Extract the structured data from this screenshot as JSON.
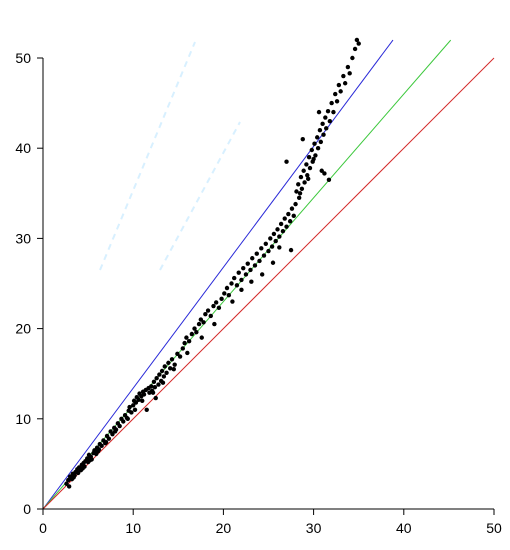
{
  "chart_data": {
    "type": "scatter",
    "title": "",
    "xlabel": "",
    "ylabel": "",
    "xlim": [
      0,
      50
    ],
    "ylim": [
      0,
      50
    ],
    "x_ticks": [
      "0",
      "10",
      "20",
      "30",
      "40",
      "50"
    ],
    "y_ticks": [
      "0",
      "10",
      "20",
      "30",
      "40",
      "50"
    ],
    "grid": false,
    "legend": "none",
    "reference_lines": [
      {
        "color": "#2a2ad8",
        "slope": 1.34,
        "x_range": [
          0,
          38.8
        ]
      },
      {
        "color": "#3cc83c",
        "slope": 1.15,
        "x_range": [
          0,
          45.2
        ]
      },
      {
        "color": "#d42a2a",
        "slope": 1.0,
        "x_range": [
          0,
          50
        ]
      }
    ],
    "points": [
      [
        2.6,
        2.8
      ],
      [
        2.8,
        3.2
      ],
      [
        3.0,
        3.6
      ],
      [
        3.2,
        3.3
      ],
      [
        3.3,
        3.9
      ],
      [
        3.5,
        3.7
      ],
      [
        3.6,
        4.1
      ],
      [
        3.8,
        4.4
      ],
      [
        3.9,
        4.0
      ],
      [
        4.0,
        4.6
      ],
      [
        4.2,
        4.3
      ],
      [
        4.3,
        4.9
      ],
      [
        4.5,
        5.1
      ],
      [
        4.6,
        4.7
      ],
      [
        4.7,
        5.3
      ],
      [
        4.9,
        5.6
      ],
      [
        5.0,
        5.2
      ],
      [
        5.1,
        6.0
      ],
      [
        5.3,
        5.8
      ],
      [
        5.4,
        5.5
      ],
      [
        5.6,
        6.2
      ],
      [
        5.7,
        6.5
      ],
      [
        5.9,
        6.1
      ],
      [
        6.0,
        6.8
      ],
      [
        6.2,
        6.6
      ],
      [
        6.3,
        7.2
      ],
      [
        6.5,
        7.0
      ],
      [
        6.7,
        7.6
      ],
      [
        6.9,
        7.3
      ],
      [
        7.1,
        8.1
      ],
      [
        7.3,
        7.8
      ],
      [
        7.5,
        8.6
      ],
      [
        7.7,
        8.3
      ],
      [
        7.9,
        9.0
      ],
      [
        8.1,
        8.8
      ],
      [
        8.3,
        9.5
      ],
      [
        8.5,
        9.2
      ],
      [
        8.7,
        10.0
      ],
      [
        8.9,
        9.7
      ],
      [
        9.1,
        10.4
      ],
      [
        9.3,
        10.1
      ],
      [
        9.5,
        10.9
      ],
      [
        9.6,
        11.3
      ],
      [
        9.8,
        10.7
      ],
      [
        10.0,
        11.5
      ],
      [
        10.1,
        12.0
      ],
      [
        10.3,
        11.8
      ],
      [
        10.4,
        12.4
      ],
      [
        10.6,
        12.1
      ],
      [
        10.7,
        12.8
      ],
      [
        10.9,
        12.5
      ],
      [
        11.1,
        13.0
      ],
      [
        11.2,
        12.7
      ],
      [
        11.4,
        13.2
      ],
      [
        11.5,
        11.0
      ],
      [
        11.7,
        13.4
      ],
      [
        11.8,
        12.9
      ],
      [
        12.0,
        13.6
      ],
      [
        12.1,
        13.1
      ],
      [
        12.3,
        14.1
      ],
      [
        12.4,
        13.5
      ],
      [
        12.5,
        12.3
      ],
      [
        12.6,
        14.5
      ],
      [
        12.8,
        13.8
      ],
      [
        12.9,
        14.9
      ],
      [
        13.1,
        14.2
      ],
      [
        13.2,
        15.3
      ],
      [
        13.4,
        14.7
      ],
      [
        13.5,
        15.8
      ],
      [
        13.7,
        15.1
      ],
      [
        13.9,
        16.2
      ],
      [
        14.1,
        15.6
      ],
      [
        14.3,
        16.6
      ],
      [
        14.6,
        16.0
      ],
      [
        14.9,
        17.2
      ],
      [
        15.2,
        16.9
      ],
      [
        15.5,
        17.8
      ],
      [
        15.7,
        18.4
      ],
      [
        15.9,
        19.0
      ],
      [
        16.2,
        18.6
      ],
      [
        16.5,
        19.4
      ],
      [
        16.8,
        20.0
      ],
      [
        17.0,
        19.6
      ],
      [
        17.3,
        20.5
      ],
      [
        17.5,
        21.0
      ],
      [
        17.8,
        20.7
      ],
      [
        18.0,
        21.6
      ],
      [
        18.3,
        22.0
      ],
      [
        18.6,
        21.4
      ],
      [
        18.9,
        22.5
      ],
      [
        19.2,
        22.9
      ],
      [
        19.5,
        22.3
      ],
      [
        19.8,
        23.3
      ],
      [
        20.1,
        23.9
      ],
      [
        20.4,
        24.5
      ],
      [
        20.6,
        23.7
      ],
      [
        20.9,
        25.0
      ],
      [
        21.2,
        25.6
      ],
      [
        21.5,
        24.8
      ],
      [
        21.7,
        26.2
      ],
      [
        22.0,
        25.4
      ],
      [
        22.2,
        26.7
      ],
      [
        22.5,
        26.0
      ],
      [
        22.7,
        27.2
      ],
      [
        23.0,
        26.5
      ],
      [
        23.2,
        27.8
      ],
      [
        23.5,
        27.0
      ],
      [
        23.7,
        28.3
      ],
      [
        24.0,
        27.5
      ],
      [
        24.2,
        28.9
      ],
      [
        24.5,
        28.1
      ],
      [
        24.7,
        29.4
      ],
      [
        25.0,
        28.6
      ],
      [
        25.2,
        30.0
      ],
      [
        25.4,
        29.1
      ],
      [
        25.6,
        30.5
      ],
      [
        25.8,
        29.7
      ],
      [
        26.0,
        31.0
      ],
      [
        26.2,
        30.2
      ],
      [
        26.4,
        31.6
      ],
      [
        26.6,
        30.8
      ],
      [
        26.8,
        32.2
      ],
      [
        27.0,
        31.3
      ],
      [
        27.2,
        32.7
      ],
      [
        27.4,
        31.9
      ],
      [
        27.6,
        33.3
      ],
      [
        27.8,
        32.5
      ],
      [
        28.0,
        33.8
      ],
      [
        28.1,
        35.2
      ],
      [
        28.3,
        36.0
      ],
      [
        28.4,
        34.5
      ],
      [
        28.6,
        36.8
      ],
      [
        28.7,
        35.5
      ],
      [
        28.9,
        37.5
      ],
      [
        29.0,
        36.2
      ],
      [
        29.2,
        38.2
      ],
      [
        29.3,
        37.0
      ],
      [
        29.5,
        39.0
      ],
      [
        29.6,
        37.8
      ],
      [
        29.8,
        39.8
      ],
      [
        29.9,
        38.5
      ],
      [
        30.1,
        40.5
      ],
      [
        30.2,
        39.2
      ],
      [
        30.4,
        41.2
      ],
      [
        30.5,
        40.0
      ],
      [
        30.7,
        42.0
      ],
      [
        30.8,
        40.7
      ],
      [
        31.0,
        42.7
      ],
      [
        31.1,
        41.5
      ],
      [
        31.3,
        43.4
      ],
      [
        31.4,
        42.2
      ],
      [
        31.6,
        44.1
      ],
      [
        31.8,
        43.0
      ],
      [
        32.0,
        45.0
      ],
      [
        32.2,
        44.0
      ],
      [
        32.4,
        46.0
      ],
      [
        32.6,
        45.2
      ],
      [
        32.8,
        47.0
      ],
      [
        33.0,
        46.3
      ],
      [
        33.3,
        48.0
      ],
      [
        33.5,
        47.2
      ],
      [
        33.8,
        49.0
      ],
      [
        34.0,
        48.3
      ],
      [
        34.3,
        50.0
      ],
      [
        34.6,
        51.0
      ],
      [
        34.8,
        52.0
      ],
      [
        35.0,
        51.6
      ],
      [
        26.2,
        29.0
      ],
      [
        27.5,
        28.7
      ],
      [
        25.5,
        27.3
      ],
      [
        24.3,
        26.0
      ],
      [
        23.1,
        25.2
      ],
      [
        22.0,
        24.3
      ],
      [
        21.0,
        23.0
      ],
      [
        19.0,
        20.5
      ],
      [
        17.6,
        19.0
      ],
      [
        16.0,
        17.3
      ],
      [
        14.5,
        15.5
      ],
      [
        13.3,
        14.0
      ],
      [
        12.2,
        12.9
      ],
      [
        11.0,
        12.0
      ],
      [
        10.2,
        11.0
      ],
      [
        9.4,
        10.0
      ],
      [
        8.0,
        8.6
      ],
      [
        7.0,
        7.4
      ],
      [
        6.1,
        6.4
      ],
      [
        5.2,
        5.4
      ],
      [
        4.4,
        4.5
      ],
      [
        3.4,
        3.5
      ],
      [
        2.9,
        2.5
      ],
      [
        27.0,
        38.5
      ],
      [
        28.8,
        41.0
      ],
      [
        30.6,
        44.0
      ],
      [
        31.7,
        36.5
      ],
      [
        31.2,
        37.2
      ],
      [
        30.0,
        38.8
      ],
      [
        29.4,
        36.6
      ],
      [
        28.5,
        35.0
      ],
      [
        30.9,
        37.5
      ]
    ]
  },
  "decor": {
    "colors": {
      "axis": "#000000",
      "point": "#000000",
      "ghost": "#d8f0ff"
    }
  }
}
